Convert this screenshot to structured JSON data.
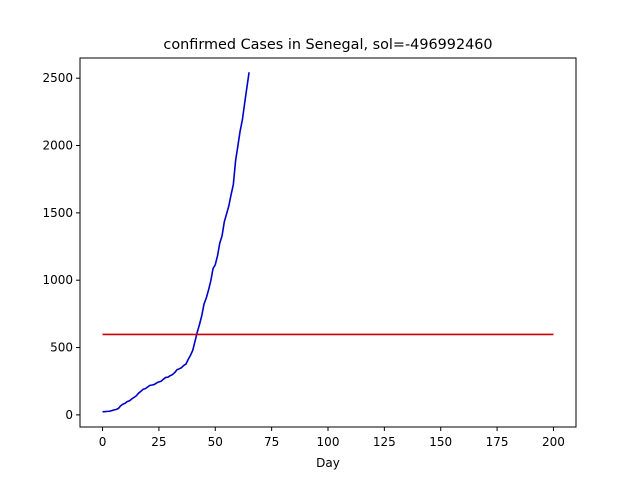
{
  "chart_data": {
    "type": "line",
    "title": "confirmed Cases in Senegal, sol=-496992460",
    "xlabel": "Day",
    "ylabel": "",
    "xlim": [
      -10,
      210
    ],
    "ylim": [
      -90,
      2650
    ],
    "x_ticks": [
      0,
      25,
      50,
      75,
      100,
      125,
      150,
      175,
      200
    ],
    "y_ticks": [
      0,
      500,
      1000,
      1500,
      2000,
      2500
    ],
    "grid": false,
    "series": [
      {
        "color": "#0000cc",
        "x": [
          0,
          1,
          2,
          3,
          4,
          5,
          6,
          7,
          8,
          9,
          10,
          11,
          12,
          13,
          14,
          15,
          16,
          17,
          18,
          19,
          20,
          21,
          22,
          23,
          24,
          25,
          26,
          27,
          28,
          29,
          30,
          31,
          32,
          33,
          34,
          35,
          36,
          37,
          38,
          39,
          40,
          41,
          42,
          43,
          44,
          45,
          46,
          47,
          48,
          49,
          50,
          51,
          52,
          53,
          54,
          55,
          56,
          57,
          58,
          59,
          60,
          61,
          62,
          63,
          64,
          65
        ],
        "y": [
          24,
          24,
          26,
          27,
          31,
          36,
          40,
          47,
          67,
          79,
          86,
          99,
          105,
          119,
          130,
          142,
          162,
          175,
          190,
          195,
          207,
          219,
          222,
          226,
          237,
          245,
          250,
          265,
          278,
          280,
          291,
          299,
          314,
          335,
          342,
          350,
          367,
          377,
          412,
          442,
          479,
          545,
          614,
          671,
          736,
          823,
          867,
          927,
          994,
          1086,
          1115,
          1182,
          1275,
          1329,
          1433,
          1492,
          1551,
          1634,
          1709,
          1886,
          1995,
          2105,
          2189,
          2310,
          2429,
          2544
        ]
      },
      {
        "color": "#cc0000",
        "x": [
          0,
          200
        ],
        "y": [
          597,
          597
        ]
      }
    ]
  }
}
